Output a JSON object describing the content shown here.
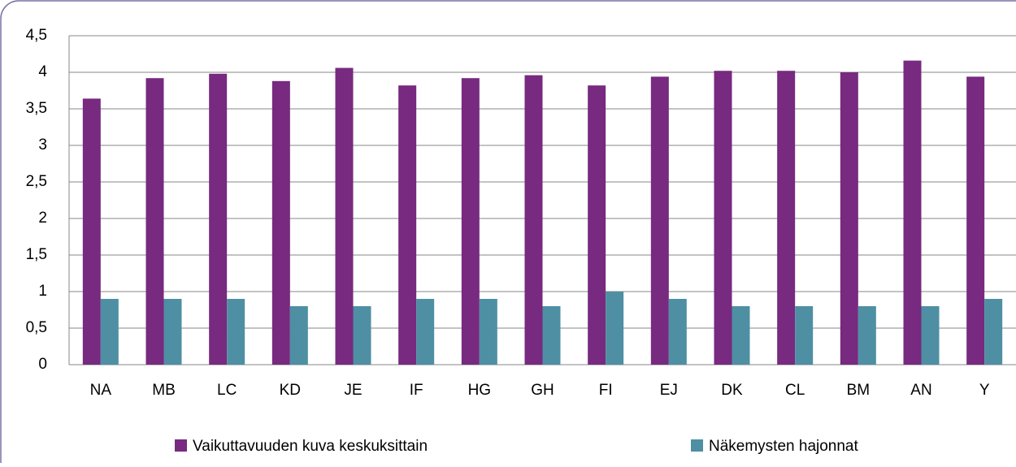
{
  "chart_data": {
    "type": "bar",
    "categories": [
      "NA",
      "MB",
      "LC",
      "KD",
      "JE",
      "IF",
      "HG",
      "GH",
      "FI",
      "EJ",
      "DK",
      "CL",
      "BM",
      "AN",
      "Y"
    ],
    "series": [
      {
        "name": "Vaikuttavuuden kuva keskuksittain",
        "color": "#772a7f",
        "values": [
          3.64,
          3.92,
          3.98,
          3.88,
          4.06,
          3.82,
          3.92,
          3.96,
          3.82,
          3.94,
          4.02,
          4.02,
          4.0,
          4.16,
          3.94
        ]
      },
      {
        "name": "Näkemysten hajonnat",
        "color": "#4e8fa3",
        "values": [
          0.9,
          0.9,
          0.9,
          0.8,
          0.8,
          0.9,
          0.9,
          0.8,
          1.0,
          0.9,
          0.8,
          0.8,
          0.8,
          0.8,
          0.9
        ]
      }
    ],
    "ylim": [
      0,
      4.5
    ],
    "yticks": [
      0,
      {
        "value": 0.5,
        "label": "0,5"
      },
      1,
      {
        "value": 1.5,
        "label": "1,5"
      },
      2,
      {
        "value": 2.5,
        "label": "2,5"
      },
      3,
      {
        "value": 3.5,
        "label": "3,5"
      },
      4,
      {
        "value": 4.5,
        "label": "4,5"
      }
    ],
    "grid": true,
    "legend": "bottom"
  }
}
